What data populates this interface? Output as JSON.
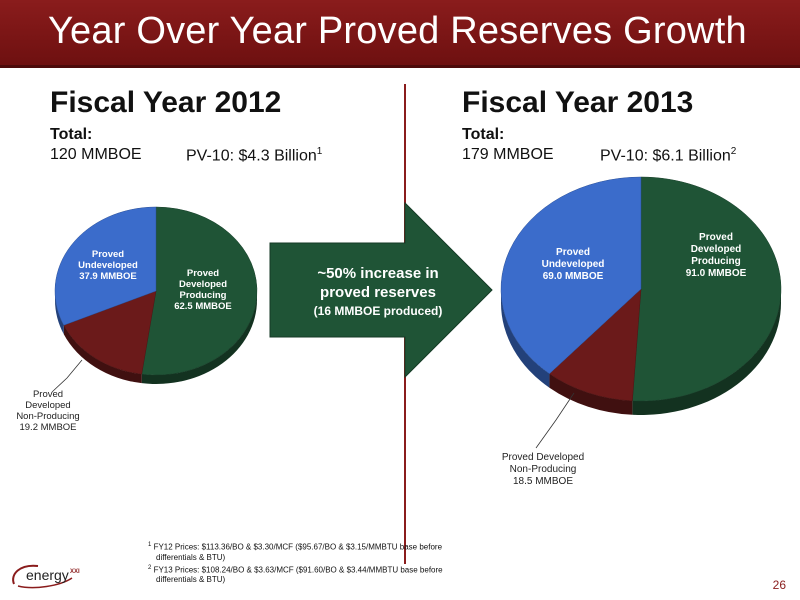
{
  "title": "Year Over Year Proved Reserves Growth",
  "colors": {
    "title_bar": "#7a1515",
    "pdp": "#1f5436",
    "pdnp": "#6b1a1a",
    "pud": "#3b6ccb",
    "arrow": "#1f5436"
  },
  "fy2012": {
    "heading": "Fiscal Year 2012",
    "total_label": "Total:",
    "total_value": "120 MMBOE",
    "pv10": "PV-10: $4.3 Billion",
    "footnote_ref": "1"
  },
  "fy2013": {
    "heading": "Fiscal Year 2013",
    "total_label": "Total:",
    "total_value": "179 MMBOE",
    "pv10": "PV-10: $6.1 Billion",
    "footnote_ref": "2"
  },
  "arrow": {
    "line1": "~50% increase in",
    "line2": "proved reserves",
    "line3": "(16 MMBOE produced)"
  },
  "chart_data": [
    {
      "type": "pie",
      "title": "Fiscal Year 2012",
      "units": "MMBOE",
      "slices": [
        {
          "key": "pdp",
          "label": [
            "Proved",
            "Developed",
            "Producing",
            "62.5 MMBOE"
          ],
          "value": 62.5,
          "color": "#1f5436"
        },
        {
          "key": "pdnp",
          "label": [
            "Proved",
            "Developed",
            "Non-Producing",
            "19.2 MMBOE"
          ],
          "value": 19.2,
          "color": "#6b1a1a"
        },
        {
          "key": "pud",
          "label": [
            "Proved",
            "Undeveloped",
            "37.9 MMBOE"
          ],
          "value": 37.9,
          "color": "#3b6ccb"
        }
      ]
    },
    {
      "type": "pie",
      "title": "Fiscal Year 2013",
      "units": "MMBOE",
      "slices": [
        {
          "key": "pdp",
          "label": [
            "Proved",
            "Developed",
            "Producing",
            "91.0 MMBOE"
          ],
          "value": 91.0,
          "color": "#1f5436"
        },
        {
          "key": "pdnp",
          "label": [
            "Proved Developed",
            "Non-Producing",
            "18.5 MMBOE"
          ],
          "value": 18.5,
          "color": "#6b1a1a"
        },
        {
          "key": "pud",
          "label": [
            "Proved",
            "Undeveloped",
            "69.0 MMBOE"
          ],
          "value": 69.0,
          "color": "#3b6ccb"
        }
      ]
    }
  ],
  "footnotes": [
    {
      "ref": "1",
      "text": "FY12 Prices: $113.36/BO & $3.30/MCF ($95.67/BO & $3.15/MMBTU base before differentials & BTU)"
    },
    {
      "ref": "2",
      "text": "FY13 Prices: $108.24/BO & $3.63/MCF ($91.60/BO & $3.44/MMBTU base before differentials & BTU)"
    }
  ],
  "logo_text": "energy",
  "logo_suffix": "XXI",
  "page_number": "26"
}
